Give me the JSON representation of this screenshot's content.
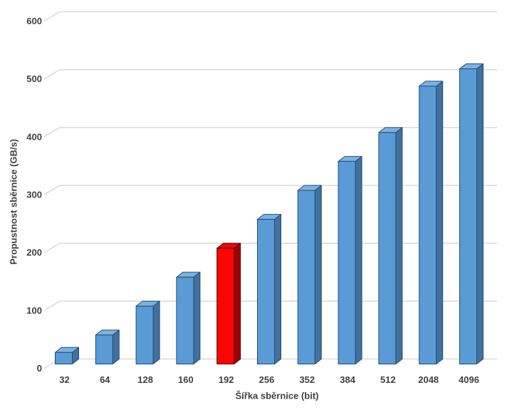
{
  "chart_data": {
    "type": "bar",
    "style": "3d-column",
    "title": "",
    "xlabel": "Šířka sběrnice (bit)",
    "ylabel": "Propustnost sběrnice (GB/s)",
    "categories": [
      "32",
      "64",
      "128",
      "160",
      "192",
      "256",
      "352",
      "384",
      "512",
      "2048",
      "4096"
    ],
    "values": [
      20,
      50,
      100,
      150,
      200,
      250,
      300,
      350,
      400,
      480,
      510
    ],
    "highlight": {
      "index": 4,
      "category": "192",
      "meaning": "highlighted-bar"
    },
    "ylim": [
      0,
      600
    ],
    "ytick_step": 100,
    "yticks": [
      "0",
      "100",
      "200",
      "300",
      "400",
      "500",
      "600"
    ],
    "grid": true,
    "legend_position": "none",
    "colors": {
      "background": "#ffffff",
      "gridline": "#dbdbdb",
      "text": "#404040",
      "bar_front": "#5b9bd5",
      "bar_top": "#7db1e0",
      "bar_side": "#41719c",
      "bar_stroke": "#1f4e79",
      "highlight_front": "#fb0505",
      "highlight_top": "#e80b0b",
      "highlight_side": "#a00000",
      "highlight_stroke": "#4a0a0a"
    }
  }
}
